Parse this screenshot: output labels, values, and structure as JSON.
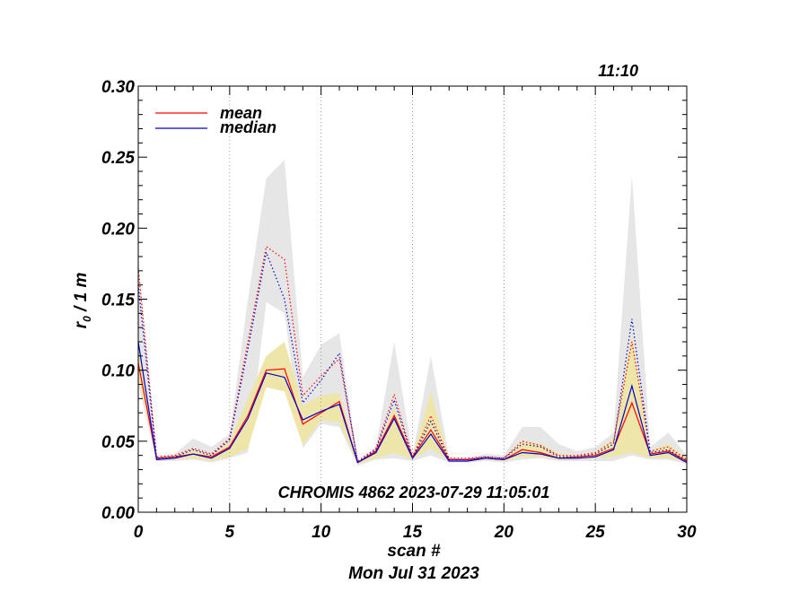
{
  "chart_data": {
    "type": "line",
    "time_label": "11:10",
    "annotation": "CHROMIS 4862 2023-07-29 11:05:01",
    "xlabel": "scan #",
    "date_label": "Mon Jul 31 2023",
    "ylabel_main": "r",
    "ylabel_sub": "0",
    "ylabel_rest": " / 1 m",
    "xlim": [
      0,
      30
    ],
    "ylim": [
      0,
      0.3
    ],
    "x_ticks": [
      0,
      5,
      10,
      15,
      20,
      25,
      30
    ],
    "x_tick_labels": [
      "0",
      "5",
      "10",
      "15",
      "20",
      "25",
      "30"
    ],
    "y_ticks": [
      0,
      0.05,
      0.1,
      0.15,
      0.2,
      0.25,
      0.3
    ],
    "y_tick_labels": [
      "0.00",
      "0.05",
      "0.10",
      "0.15",
      "0.20",
      "0.25",
      "0.30"
    ],
    "vertical_gridlines": [
      5,
      10,
      15,
      20,
      25
    ],
    "legend": {
      "placement": "top-left",
      "entries": [
        {
          "label": "mean",
          "color": "#ff0000"
        },
        {
          "label": "median",
          "color": "#0000cc"
        }
      ]
    },
    "colors": {
      "mean": "#ff0000",
      "median": "#0000cc",
      "band_outer": "#e6e6e6",
      "band_inner": "#eee6a8"
    },
    "x": [
      0,
      1,
      2,
      3,
      4,
      5,
      6,
      7,
      8,
      9,
      10,
      11,
      12,
      13,
      14,
      15,
      16,
      17,
      18,
      19,
      20,
      21,
      22,
      23,
      24,
      25,
      26,
      27,
      28,
      29,
      30
    ],
    "outer_band": {
      "upper": [
        0.175,
        0.04,
        0.041,
        0.052,
        0.046,
        0.055,
        0.15,
        0.235,
        0.248,
        0.095,
        0.118,
        0.126,
        0.036,
        0.046,
        0.12,
        0.04,
        0.11,
        0.039,
        0.038,
        0.041,
        0.04,
        0.06,
        0.06,
        0.048,
        0.043,
        0.046,
        0.056,
        0.237,
        0.046,
        0.056,
        0.04
      ],
      "lower": [
        0.09,
        0.036,
        0.036,
        0.037,
        0.035,
        0.038,
        0.042,
        0.148,
        0.14,
        0.045,
        0.062,
        0.06,
        0.033,
        0.037,
        0.038,
        0.036,
        0.04,
        0.035,
        0.035,
        0.036,
        0.035,
        0.037,
        0.038,
        0.036,
        0.036,
        0.036,
        0.036,
        0.04,
        0.037,
        0.037,
        0.034
      ]
    },
    "inner_band": {
      "upper": [
        0.12,
        0.039,
        0.04,
        0.044,
        0.041,
        0.05,
        0.08,
        0.11,
        0.12,
        0.075,
        0.082,
        0.084,
        0.035,
        0.044,
        0.075,
        0.039,
        0.085,
        0.037,
        0.037,
        0.039,
        0.038,
        0.05,
        0.048,
        0.041,
        0.04,
        0.042,
        0.052,
        0.125,
        0.043,
        0.048,
        0.038
      ],
      "lower": [
        0.095,
        0.037,
        0.037,
        0.038,
        0.036,
        0.039,
        0.045,
        0.088,
        0.085,
        0.047,
        0.065,
        0.063,
        0.034,
        0.038,
        0.042,
        0.037,
        0.045,
        0.036,
        0.036,
        0.037,
        0.036,
        0.039,
        0.039,
        0.037,
        0.037,
        0.038,
        0.039,
        0.042,
        0.038,
        0.038,
        0.035
      ]
    },
    "series": [
      {
        "name": "mean",
        "style": "solid",
        "color": "#ff0000",
        "values": [
          0.105,
          0.038,
          0.039,
          0.041,
          0.039,
          0.046,
          0.068,
          0.1,
          0.101,
          0.062,
          0.07,
          0.078,
          0.035,
          0.043,
          0.068,
          0.039,
          0.058,
          0.037,
          0.037,
          0.038,
          0.037,
          0.044,
          0.042,
          0.038,
          0.039,
          0.04,
          0.045,
          0.077,
          0.041,
          0.043,
          0.036
        ]
      },
      {
        "name": "median",
        "style": "solid",
        "color": "#0000cc",
        "values": [
          0.12,
          0.037,
          0.038,
          0.041,
          0.038,
          0.045,
          0.066,
          0.098,
          0.095,
          0.065,
          0.071,
          0.076,
          0.035,
          0.042,
          0.066,
          0.038,
          0.055,
          0.036,
          0.036,
          0.038,
          0.037,
          0.042,
          0.041,
          0.038,
          0.038,
          0.039,
          0.044,
          0.089,
          0.04,
          0.042,
          0.035
        ]
      },
      {
        "name": "mean",
        "style": "dotted",
        "color": "#ff0000",
        "values": [
          0.172,
          0.039,
          0.04,
          0.045,
          0.041,
          0.052,
          0.12,
          0.187,
          0.178,
          0.082,
          0.096,
          0.108,
          0.036,
          0.045,
          0.083,
          0.039,
          0.068,
          0.038,
          0.038,
          0.039,
          0.038,
          0.05,
          0.047,
          0.04,
          0.04,
          0.042,
          0.05,
          0.12,
          0.043,
          0.046,
          0.037
        ]
      },
      {
        "name": "median",
        "style": "dotted",
        "color": "#0000cc",
        "values": [
          0.16,
          0.038,
          0.039,
          0.044,
          0.04,
          0.051,
          0.115,
          0.183,
          0.15,
          0.077,
          0.093,
          0.112,
          0.035,
          0.044,
          0.079,
          0.038,
          0.064,
          0.037,
          0.037,
          0.039,
          0.038,
          0.048,
          0.046,
          0.039,
          0.039,
          0.041,
          0.048,
          0.136,
          0.042,
          0.044,
          0.036
        ]
      }
    ]
  }
}
